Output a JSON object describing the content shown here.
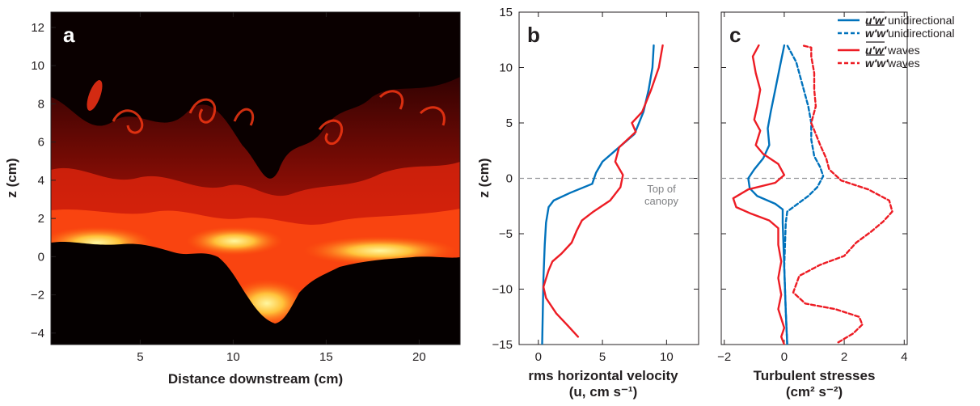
{
  "chart_data": [
    {
      "type": "image",
      "panel_label": "a",
      "xlabel": "Distance downstream (cm)",
      "ylabel": "z (cm)",
      "xticks": [
        5,
        10,
        15,
        20
      ],
      "yticks": [
        -4,
        -2,
        0,
        2,
        4,
        6,
        8,
        10,
        12
      ],
      "xlim": [
        0.2,
        22.2
      ],
      "ylim": [
        -4.6,
        12.8
      ]
    },
    {
      "type": "line",
      "panel_label": "b",
      "xlabel": "rms horizontal velocity",
      "xlabel_sub": "(u, cm s⁻¹)",
      "ylabel": "z (cm)",
      "xlim": [
        -1.5,
        12.5
      ],
      "ylim": [
        -15,
        15
      ],
      "xticks": [
        0,
        5,
        10
      ],
      "yticks": [
        -15,
        -10,
        -5,
        0,
        5,
        10,
        15
      ],
      "annotation_line1": "Top of",
      "annotation_line2": "canopy",
      "series": [
        {
          "color": "#0072bc",
          "points": [
            [
              0.3,
              -15
            ],
            [
              0.35,
              -12
            ],
            [
              0.4,
              -9
            ],
            [
              0.5,
              -6
            ],
            [
              0.6,
              -4
            ],
            [
              0.8,
              -2.6
            ],
            [
              1.2,
              -2.0
            ],
            [
              2.5,
              -1.3
            ],
            [
              4.2,
              -0.5
            ],
            [
              4.5,
              0.5
            ],
            [
              5.0,
              1.5
            ],
            [
              6.0,
              2.5
            ],
            [
              7.5,
              4.0
            ],
            [
              8.2,
              6.0
            ],
            [
              8.6,
              8.0
            ],
            [
              8.9,
              10.0
            ],
            [
              9.0,
              12.0
            ]
          ]
        },
        {
          "color": "#ed1c24",
          "points": [
            [
              3.1,
              -14.3
            ],
            [
              2.3,
              -13.3
            ],
            [
              1.4,
              -12.2
            ],
            [
              0.6,
              -10.8
            ],
            [
              0.4,
              -9.8
            ],
            [
              0.8,
              -8.3
            ],
            [
              1.1,
              -7.5
            ],
            [
              1.8,
              -6.8
            ],
            [
              2.6,
              -5.8
            ],
            [
              3.0,
              -4.7
            ],
            [
              3.4,
              -3.8
            ],
            [
              4.3,
              -3.0
            ],
            [
              5.6,
              -2.0
            ],
            [
              6.4,
              -0.8
            ],
            [
              6.6,
              0.3
            ],
            [
              6.0,
              1.5
            ],
            [
              6.3,
              2.8
            ],
            [
              7.6,
              4.2
            ],
            [
              7.3,
              5.0
            ],
            [
              8.1,
              6.0
            ],
            [
              8.8,
              8.0
            ],
            [
              9.4,
              10.0
            ],
            [
              9.7,
              12.0
            ]
          ]
        }
      ]
    },
    {
      "type": "line",
      "panel_label": "c",
      "xlabel": "Turbulent stresses",
      "xlabel_sub": "(cm² s⁻²)",
      "ylabel": "",
      "xlim": [
        -2.1,
        4.1
      ],
      "ylim": [
        -15,
        15
      ],
      "xticks": [
        -2,
        0,
        2,
        4
      ],
      "yticks": [
        -15,
        -10,
        -5,
        0,
        5,
        10,
        15
      ],
      "series": [
        {
          "name": "u′w′",
          "suffix": "unidirectional",
          "color": "#0072bc",
          "dash": false,
          "points": [
            [
              0.1,
              -15
            ],
            [
              0.05,
              -12
            ],
            [
              0.0,
              -8
            ],
            [
              -0.05,
              -4
            ],
            [
              -0.05,
              -2.8
            ],
            [
              -0.3,
              -2.3
            ],
            [
              -0.9,
              -1.6
            ],
            [
              -1.15,
              -0.9
            ],
            [
              -1.2,
              0.0
            ],
            [
              -1.0,
              0.8
            ],
            [
              -0.7,
              1.8
            ],
            [
              -0.5,
              3.0
            ],
            [
              -0.55,
              4.5
            ],
            [
              -0.45,
              6.0
            ],
            [
              -0.3,
              8.0
            ],
            [
              -0.15,
              10.0
            ],
            [
              0.0,
              12.0
            ]
          ]
        },
        {
          "name": "w′w′",
          "suffix": "unidirectional",
          "color": "#0072bc",
          "dash": true,
          "points": [
            [
              0.1,
              -15
            ],
            [
              0.05,
              -12
            ],
            [
              0.0,
              -8
            ],
            [
              0.05,
              -4
            ],
            [
              0.1,
              -3.0
            ],
            [
              0.4,
              -2.4
            ],
            [
              0.8,
              -1.6
            ],
            [
              1.1,
              -0.8
            ],
            [
              1.3,
              0.2
            ],
            [
              1.2,
              1.0
            ],
            [
              1.0,
              2.0
            ],
            [
              0.9,
              3.5
            ],
            [
              0.9,
              5.0
            ],
            [
              0.8,
              6.5
            ],
            [
              0.6,
              8.5
            ],
            [
              0.4,
              10.5
            ],
            [
              0.1,
              12.0
            ]
          ]
        },
        {
          "name": "u′w′",
          "suffix": "waves",
          "color": "#ed1c24",
          "dash": false,
          "points": [
            [
              0.0,
              -15
            ],
            [
              -0.1,
              -14.3
            ],
            [
              0.0,
              -13.5
            ],
            [
              -0.2,
              -11.8
            ],
            [
              -0.1,
              -10.5
            ],
            [
              -0.2,
              -9
            ],
            [
              -0.1,
              -7.5
            ],
            [
              -0.2,
              -6
            ],
            [
              -0.2,
              -4.5
            ],
            [
              -0.5,
              -3.8
            ],
            [
              -1.1,
              -3.2
            ],
            [
              -1.6,
              -2.6
            ],
            [
              -1.7,
              -1.8
            ],
            [
              -1.2,
              -1.0
            ],
            [
              -0.3,
              -0.4
            ],
            [
              0.0,
              0.3
            ],
            [
              -0.2,
              1.3
            ],
            [
              -0.7,
              2.2
            ],
            [
              -0.95,
              3.0
            ],
            [
              -0.8,
              4.3
            ],
            [
              -1.0,
              5.3
            ],
            [
              -0.9,
              6.5
            ],
            [
              -0.8,
              8.0
            ],
            [
              -0.95,
              9.5
            ],
            [
              -1.05,
              11.0
            ],
            [
              -0.85,
              12.0
            ]
          ]
        },
        {
          "name": "w′w′",
          "suffix": "waves",
          "color": "#ed1c24",
          "dash": true,
          "points": [
            [
              1.8,
              -14.8
            ],
            [
              2.3,
              -14
            ],
            [
              2.6,
              -13.2
            ],
            [
              2.5,
              -12.5
            ],
            [
              1.7,
              -11.8
            ],
            [
              0.7,
              -11.3
            ],
            [
              0.3,
              -10.3
            ],
            [
              0.5,
              -8.8
            ],
            [
              1.2,
              -7.8
            ],
            [
              2.0,
              -7.0
            ],
            [
              2.4,
              -5.8
            ],
            [
              2.9,
              -4.8
            ],
            [
              3.3,
              -3.9
            ],
            [
              3.6,
              -3.0
            ],
            [
              3.5,
              -2.0
            ],
            [
              2.8,
              -1.0
            ],
            [
              1.9,
              -0.2
            ],
            [
              1.5,
              0.8
            ],
            [
              1.4,
              1.8
            ],
            [
              1.2,
              3.0
            ],
            [
              1.05,
              4.0
            ],
            [
              0.9,
              5.0
            ],
            [
              1.05,
              6.5
            ],
            [
              1.0,
              8.0
            ],
            [
              1.0,
              9.5
            ],
            [
              0.9,
              11.0
            ],
            [
              0.9,
              11.8
            ],
            [
              0.6,
              12.0
            ]
          ]
        }
      ]
    }
  ]
}
